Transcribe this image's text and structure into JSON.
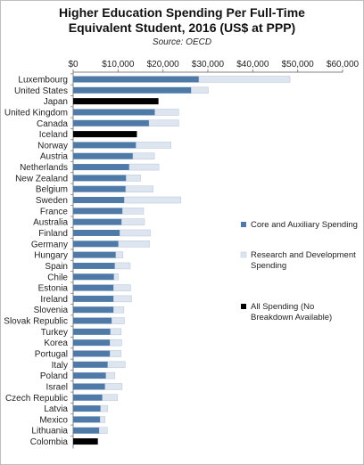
{
  "chart_data": {
    "type": "bar",
    "orientation": "horizontal",
    "stacked": true,
    "title_line1": "Higher Education Spending Per Full-Time",
    "title_line2": "Equivalent Student, 2016 (US$ at PPP)",
    "subtitle": "Source: OECD",
    "xlabel": "",
    "ylabel": "",
    "xlim": [
      0,
      60000
    ],
    "x_tick_values": [
      0,
      10000,
      20000,
      30000,
      40000,
      50000,
      60000
    ],
    "x_tick_labels": [
      "$0",
      "$10,000",
      "$20,000",
      "$30,000",
      "$40,000",
      "$50,000",
      "$60,000"
    ],
    "grid": false,
    "legend_position": "right",
    "categories": [
      "Luxembourg",
      "United States",
      "Japan",
      "United Kingdom",
      "Canada",
      "Iceland",
      "Norway",
      "Austria",
      "Netherlands",
      "New Zealand",
      "Belgium",
      "Sweden",
      "France",
      "Australia",
      "Finland",
      "Germany",
      "Hungary",
      "Spain",
      "Chile",
      "Estonia",
      "Ireland",
      "Slovenia",
      "Slovak Republic",
      "Turkey",
      "Korea",
      "Portugal",
      "Italy",
      "Poland",
      "Israel",
      "Czech Republic",
      "Latvia",
      "Mexico",
      "Lithuania",
      "Colombia"
    ],
    "series": [
      {
        "name": "Core and Auxiliary Spending",
        "color": "#4f7aa8",
        "values": [
          28000,
          26300,
          null,
          18200,
          16900,
          null,
          14000,
          13300,
          12500,
          11800,
          11700,
          11400,
          11000,
          10800,
          10400,
          10100,
          9500,
          9300,
          9100,
          9000,
          9000,
          9000,
          8600,
          8300,
          8200,
          8200,
          7700,
          7300,
          7100,
          6500,
          6100,
          6000,
          5800,
          null
        ]
      },
      {
        "name": "Research and Development Spending",
        "color": "#dde5f0",
        "values": [
          20300,
          3800,
          null,
          5300,
          6600,
          null,
          7800,
          4800,
          6600,
          3200,
          6100,
          12600,
          4700,
          5100,
          6800,
          6900,
          1600,
          3400,
          1000,
          3800,
          4000,
          2300,
          2800,
          2400,
          2600,
          2500,
          3900,
          2000,
          3800,
          3400,
          1600,
          1100,
          1800,
          null
        ]
      },
      {
        "name": "All Spending (No Breakdown Available)",
        "color": "#000000",
        "values": [
          null,
          null,
          19000,
          null,
          null,
          14200,
          null,
          null,
          null,
          null,
          null,
          null,
          null,
          null,
          null,
          null,
          null,
          null,
          null,
          null,
          null,
          null,
          null,
          null,
          null,
          null,
          null,
          null,
          null,
          null,
          null,
          null,
          null,
          5500
        ]
      }
    ]
  }
}
